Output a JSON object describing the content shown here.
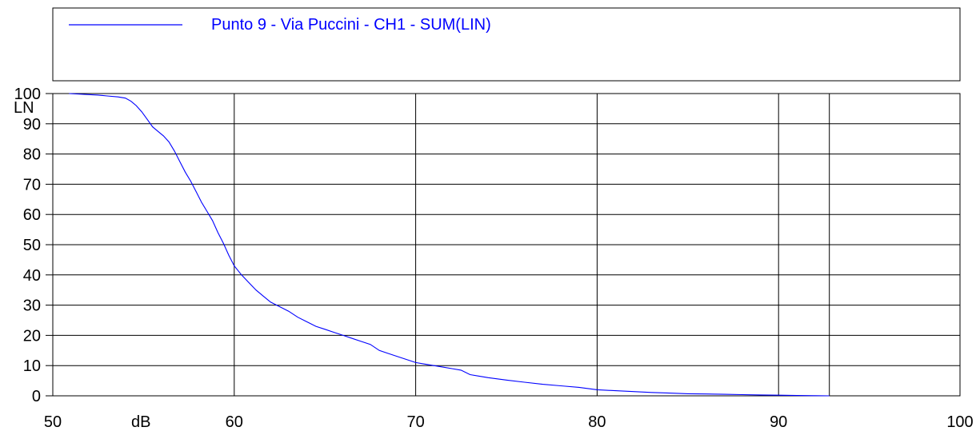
{
  "chart_data": {
    "type": "line",
    "title": "",
    "xlabel": "dB",
    "ylabel": "LN",
    "xlim": [
      50,
      100
    ],
    "ylim": [
      0,
      100
    ],
    "x_ticks": [
      50,
      60,
      70,
      80,
      90,
      100
    ],
    "x_tick_labels": [
      "50",
      "60",
      "70",
      "80",
      "90",
      "100"
    ],
    "y_ticks": [
      0,
      10,
      20,
      30,
      40,
      50,
      60,
      70,
      80,
      90,
      100
    ],
    "y_tick_labels": [
      "0",
      "10",
      "20",
      "30",
      "40",
      "50",
      "60",
      "70",
      "80",
      "90",
      "100"
    ],
    "extra_vertical_line_x": 92.8,
    "grid": true,
    "legend_position": "top",
    "series": [
      {
        "name": "Punto 9 - Via Puccini - CH1 - SUM(LIN)",
        "color": "#0000ff",
        "x": [
          50.9,
          52.5,
          53.0,
          53.6,
          54.0,
          54.3,
          54.6,
          54.9,
          55.2,
          55.5,
          55.8,
          56.1,
          56.4,
          56.7,
          57.0,
          57.3,
          57.6,
          57.9,
          58.2,
          58.5,
          58.8,
          59.1,
          59.4,
          59.7,
          60.0,
          60.4,
          60.8,
          61.2,
          61.6,
          62.0,
          62.5,
          63.0,
          63.5,
          64.0,
          64.5,
          65.0,
          65.5,
          66.0,
          66.5,
          67.0,
          67.5,
          68.0,
          68.5,
          69.0,
          69.5,
          70.0,
          70.5,
          71.0,
          71.5,
          72.0,
          72.5,
          73.0,
          73.5,
          74.0,
          75.0,
          76.0,
          77.0,
          78.0,
          79.0,
          80.0,
          81.0,
          82.0,
          83.0,
          84.0,
          85.0,
          86.0,
          87.0,
          88.0,
          89.0,
          90.0,
          91.0,
          92.0,
          92.8
        ],
        "y": [
          100,
          99.5,
          99.2,
          98.9,
          98.5,
          97.5,
          96,
          94,
          91.5,
          89,
          87.5,
          86,
          84,
          81,
          77.5,
          74,
          71,
          67.5,
          64,
          61,
          58,
          54,
          50.5,
          46.5,
          43,
          40,
          37.5,
          35,
          33,
          31,
          29.5,
          28,
          26,
          24.5,
          23,
          22,
          21,
          20,
          19,
          18,
          17,
          15,
          14,
          13,
          12,
          11,
          10.5,
          10,
          9.5,
          9,
          8.5,
          7,
          6.5,
          6,
          5.2,
          4.5,
          3.8,
          3.3,
          2.8,
          2,
          1.7,
          1.4,
          1.1,
          0.9,
          0.7,
          0.6,
          0.5,
          0.4,
          0.3,
          0.2,
          0.1,
          0.05,
          0
        ]
      }
    ]
  }
}
